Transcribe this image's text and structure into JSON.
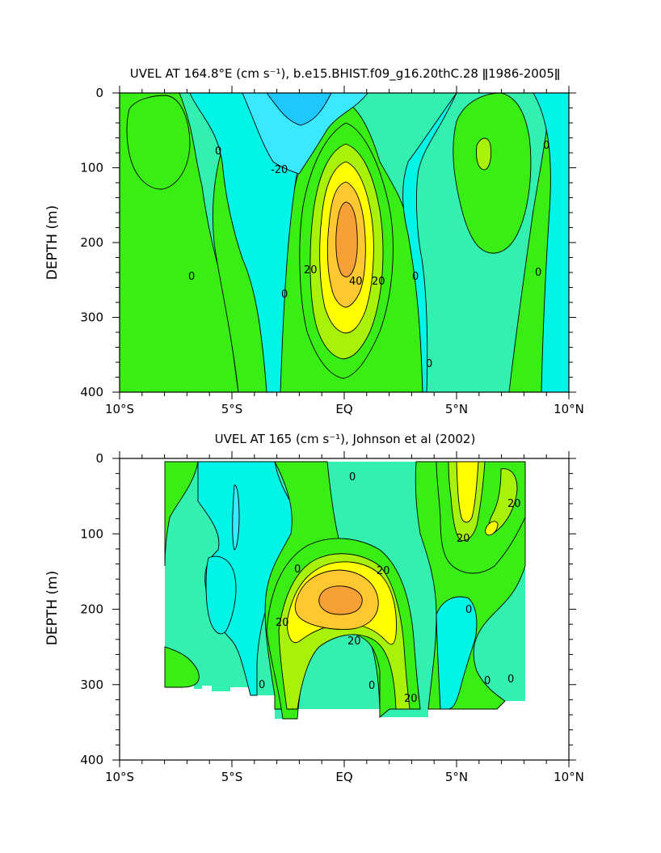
{
  "chart_data": [
    {
      "type": "contour",
      "title": "UVEL AT 164.8°E (cm s⁻¹), b.e15.BHIST.f09_g16.20thC.28 ǁ1986-2005ǁ",
      "ylabel": "DEPTH (m)",
      "xlabel": "",
      "xlim": [
        -10,
        10
      ],
      "ylim": [
        400,
        0
      ],
      "x_ticks": [
        "10°S",
        "5°S",
        "EQ",
        "5°N",
        "10°N"
      ],
      "y_ticks": [
        "0",
        "100",
        "200",
        "300",
        "400"
      ],
      "contour_interval": 10,
      "contour_labels": [
        "0",
        "-20",
        "0",
        "20",
        "40",
        "20",
        "0",
        "0",
        "0",
        "0",
        "0"
      ],
      "features": {
        "eastward_core": {
          "lat": 0.0,
          "depth": 190,
          "max": 50
        },
        "westward_surface": {
          "lat": -1.5,
          "depth": 0,
          "min": -30
        }
      }
    },
    {
      "type": "contour",
      "title": "UVEL AT 165 (cm s⁻¹), Johnson et al (2002)",
      "ylabel": "DEPTH (m)",
      "xlabel": "",
      "xlim": [
        -10,
        10
      ],
      "ylim": [
        400,
        0
      ],
      "x_ticks": [
        "10°S",
        "5°S",
        "EQ",
        "5°N",
        "10°N"
      ],
      "y_ticks": [
        "0",
        "100",
        "200",
        "300",
        "400"
      ],
      "contour_interval": 10,
      "contour_labels": [
        "0",
        "20",
        "20",
        "0",
        "20",
        "0",
        "20",
        "20",
        "0",
        "0",
        "0",
        "0",
        "20"
      ],
      "data_lat_range": [
        -8,
        8
      ],
      "features": {
        "eastward_core": {
          "lat": 0.0,
          "depth": 185,
          "max": 40
        },
        "eastward_surface_north": {
          "lat": 5.5,
          "depth": 50,
          "max": 30
        }
      }
    }
  ],
  "colors": {
    "minus30": "#1ec8ff",
    "minus20": "#3ae8ff",
    "minus10": "#00f5e6",
    "zero": "#33f0b0",
    "plus10": "#39ee14",
    "plus20": "#a8f20a",
    "plus30": "#ffff00",
    "plus40": "#ffc830",
    "plus50": "#f7a036"
  }
}
